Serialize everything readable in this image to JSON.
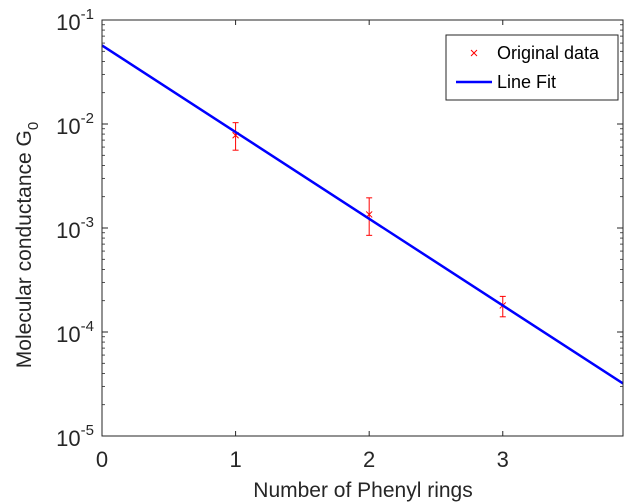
{
  "chart_data": {
    "type": "line",
    "title": "",
    "xlabel": "Number of Phenyl rings",
    "ylabel": "Molecular conductance G",
    "ylabel_subscript": "0",
    "xlim": [
      0,
      3.9
    ],
    "ylim": [
      1e-05,
      0.1
    ],
    "yscale": "log",
    "xticks": [
      0,
      1,
      2,
      3
    ],
    "xtick_labels": [
      "0",
      "1",
      "2",
      "3"
    ],
    "yticks": [
      {
        "value": 0.1,
        "base": "10",
        "exp": "-1"
      },
      {
        "value": 0.01,
        "base": "10",
        "exp": "-2"
      },
      {
        "value": 0.001,
        "base": "10",
        "exp": "-3"
      },
      {
        "value": 0.0001,
        "base": "10",
        "exp": "-4"
      },
      {
        "value": 1e-05,
        "base": "10",
        "exp": "-5"
      }
    ],
    "grid": false,
    "legend_position": "top-right",
    "series": [
      {
        "name": "Original data",
        "kind": "scatter",
        "marker": "×",
        "color": "#ff0000",
        "x": [
          1,
          2,
          3
        ],
        "y": [
          0.0078,
          0.00135,
          0.00018
        ],
        "yerr_low": [
          0.0056,
          0.00085,
          0.00014
        ],
        "yerr_high": [
          0.0103,
          0.00195,
          0.00022
        ]
      },
      {
        "name": "Line Fit",
        "kind": "line",
        "color": "#0000ff",
        "x": [
          0,
          3.9
        ],
        "y": [
          0.057,
          3.2e-05
        ]
      }
    ]
  }
}
